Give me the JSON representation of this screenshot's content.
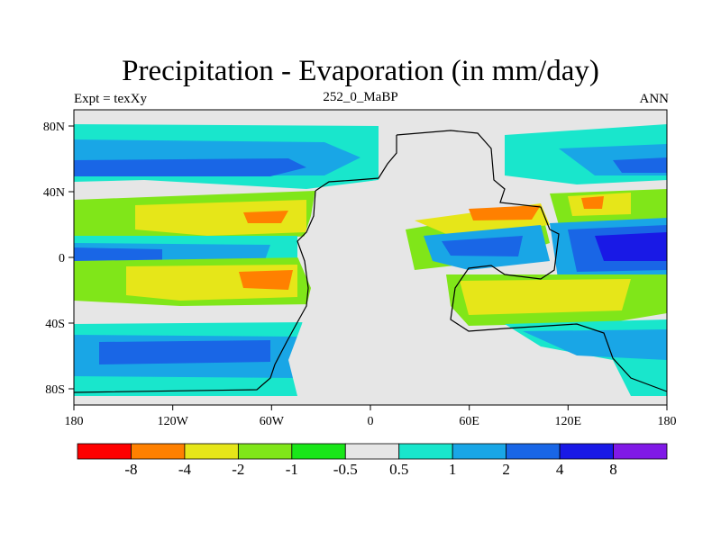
{
  "title": "Precipitation - Evaporation (in mm/day)",
  "subtitle_left": "Expt = texXy",
  "subtitle_center": "252_0_MaBP",
  "subtitle_right": "ANN",
  "x_ticks": [
    "180",
    "120W",
    "60W",
    "0",
    "60E",
    "120E",
    "180"
  ],
  "y_ticks": [
    "80N",
    "40N",
    "0",
    "40S",
    "80S"
  ],
  "colorbar": {
    "colors": [
      "#ff0000",
      "#ff8000",
      "#e6e619",
      "#80e619",
      "#19e619",
      "#e6e6e6",
      "#19e6cc",
      "#19a6e6",
      "#1966e6",
      "#1919e6",
      "#8019e6"
    ],
    "labels": [
      "-8",
      "-4",
      "-2",
      "-1",
      "-0.5",
      "0.5",
      "1",
      "2",
      "4",
      "8"
    ]
  }
}
